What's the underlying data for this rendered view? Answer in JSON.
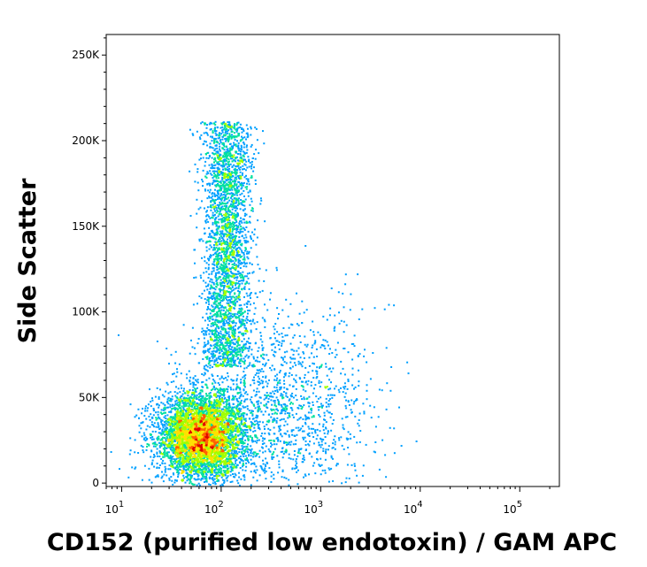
{
  "chart_data": {
    "type": "scatter",
    "style": "flow-cytometry density dot plot (pseudocolor)",
    "title": "",
    "xlabel": "CD152 (purified low endotoxin) / GAM APC",
    "ylabel": "Side Scatter",
    "x_scale": "log",
    "y_scale": "linear",
    "xlim": [
      7,
      250000
    ],
    "ylim": [
      -2000,
      262000
    ],
    "x_ticks": [
      {
        "value": 10,
        "base": "10",
        "exp": "1"
      },
      {
        "value": 100,
        "base": "10",
        "exp": "2"
      },
      {
        "value": 1000,
        "base": "10",
        "exp": "3"
      },
      {
        "value": 10000,
        "base": "10",
        "exp": "4"
      },
      {
        "value": 100000,
        "base": "10",
        "exp": "5"
      }
    ],
    "y_ticks": [
      {
        "value": 0,
        "label": "0"
      },
      {
        "value": 50000,
        "label": "50K"
      },
      {
        "value": 100000,
        "label": "100K"
      },
      {
        "value": 150000,
        "label": "150K"
      },
      {
        "value": 200000,
        "label": "200K"
      },
      {
        "value": 250000,
        "label": "250K"
      }
    ],
    "populations": [
      {
        "name": "main",
        "x_center_log10": 1.8,
        "x_spread_log10": 0.23,
        "y_center": 28000,
        "y_spread": 13000,
        "weight": 0.55
      },
      {
        "name": "vertical-streak",
        "x_center_log10": 2.05,
        "x_spread_log10": 0.12,
        "y_center": 140000,
        "y_spread": 65000,
        "weight": 0.3
      },
      {
        "name": "tail",
        "x_center_log10": 2.6,
        "x_spread_log10": 0.45,
        "y_center": 45000,
        "y_spread": 30000,
        "weight": 0.1
      }
    ],
    "density_colors": [
      "#0000ff",
      "#00a0ff",
      "#00e0a0",
      "#a0ff00",
      "#ffe000",
      "#ff6000",
      "#e00000"
    ]
  }
}
